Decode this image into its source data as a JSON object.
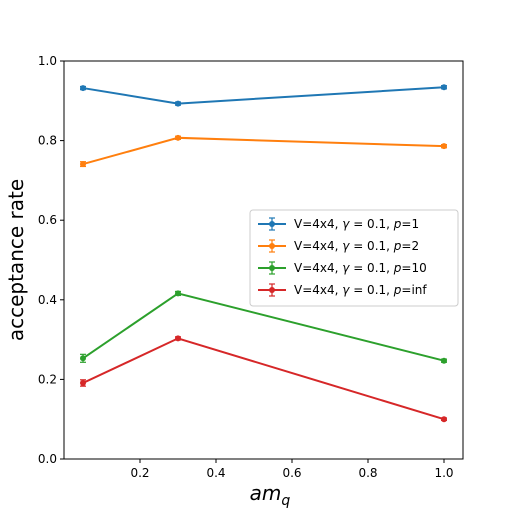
{
  "chart_data": {
    "type": "line",
    "title": "",
    "xlabel": "am",
    "xlabel_sub": "q",
    "ylabel": "acceptance rate",
    "xlim": [
      0.0,
      1.05
    ],
    "ylim": [
      0.0,
      1.0
    ],
    "xticks": [
      0.2,
      0.4,
      0.6,
      0.8,
      1.0
    ],
    "xtick_labels": [
      "0.2",
      "0.4",
      "0.6",
      "0.8",
      "1.0"
    ],
    "yticks": [
      0.0,
      0.2,
      0.4,
      0.6,
      0.8,
      1.0
    ],
    "ytick_labels": [
      "0.0",
      "0.2",
      "0.4",
      "0.6",
      "0.8",
      "1.0"
    ],
    "x": [
      0.05,
      0.3,
      1.0
    ],
    "legend_position": "center-right",
    "series": [
      {
        "name": "V=4x4, γ = 0.1, p=1",
        "legend": {
          "pre": "V=4x4, ",
          "gamma": "γ",
          "mid": " = 0.1, ",
          "p": "p",
          "post": "=1"
        },
        "color": "#1f77b4",
        "values": [
          0.932,
          0.893,
          0.934
        ],
        "errors": [
          0.004,
          0.004,
          0.004
        ]
      },
      {
        "name": "V=4x4, γ = 0.1, p=2",
        "legend": {
          "pre": "V=4x4, ",
          "gamma": "γ",
          "mid": " = 0.1, ",
          "p": "p",
          "post": "=2"
        },
        "color": "#ff7f0e",
        "values": [
          0.741,
          0.807,
          0.786
        ],
        "errors": [
          0.006,
          0.004,
          0.004
        ]
      },
      {
        "name": "V=4x4, γ = 0.1, p=10",
        "legend": {
          "pre": "V=4x4, ",
          "gamma": "γ",
          "mid": " = 0.1, ",
          "p": "p",
          "post": "=10"
        },
        "color": "#2ca02c",
        "values": [
          0.253,
          0.416,
          0.247
        ],
        "errors": [
          0.01,
          0.005,
          0.004
        ]
      },
      {
        "name": "V=4x4, γ = 0.1, p=inf",
        "legend": {
          "pre": "V=4x4, ",
          "gamma": "γ",
          "mid": " = 0.1, ",
          "p": "p",
          "post": "=inf"
        },
        "color": "#d62728",
        "values": [
          0.191,
          0.303,
          0.1
        ],
        "errors": [
          0.008,
          0.004,
          0.003
        ]
      }
    ]
  }
}
